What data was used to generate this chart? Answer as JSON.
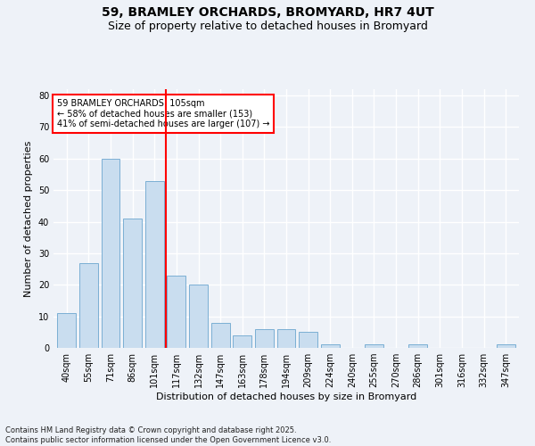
{
  "title": "59, BRAMLEY ORCHARDS, BROMYARD, HR7 4UT",
  "subtitle": "Size of property relative to detached houses in Bromyard",
  "xlabel": "Distribution of detached houses by size in Bromyard",
  "ylabel": "Number of detached properties",
  "categories": [
    "40sqm",
    "55sqm",
    "71sqm",
    "86sqm",
    "101sqm",
    "117sqm",
    "132sqm",
    "147sqm",
    "163sqm",
    "178sqm",
    "194sqm",
    "209sqm",
    "224sqm",
    "240sqm",
    "255sqm",
    "270sqm",
    "286sqm",
    "301sqm",
    "316sqm",
    "332sqm",
    "347sqm"
  ],
  "values": [
    11,
    27,
    60,
    41,
    53,
    23,
    20,
    8,
    4,
    6,
    6,
    5,
    1,
    0,
    1,
    0,
    1,
    0,
    0,
    0,
    1
  ],
  "bar_color": "#c9ddef",
  "bar_edge_color": "#7bafd4",
  "vline_x_index": 4.5,
  "vline_color": "red",
  "annotation_text": "59 BRAMLEY ORCHARDS: 105sqm\n← 58% of detached houses are smaller (153)\n41% of semi-detached houses are larger (107) →",
  "annotation_box_color": "white",
  "annotation_box_edge_color": "red",
  "ylim": [
    0,
    82
  ],
  "yticks": [
    0,
    10,
    20,
    30,
    40,
    50,
    60,
    70,
    80
  ],
  "footer_line1": "Contains HM Land Registry data © Crown copyright and database right 2025.",
  "footer_line2": "Contains public sector information licensed under the Open Government Licence v3.0.",
  "background_color": "#eef2f8",
  "grid_color": "white",
  "title_fontsize": 10,
  "subtitle_fontsize": 9,
  "ylabel_fontsize": 8,
  "xlabel_fontsize": 8,
  "tick_fontsize": 7,
  "annotation_fontsize": 7,
  "footer_fontsize": 6
}
